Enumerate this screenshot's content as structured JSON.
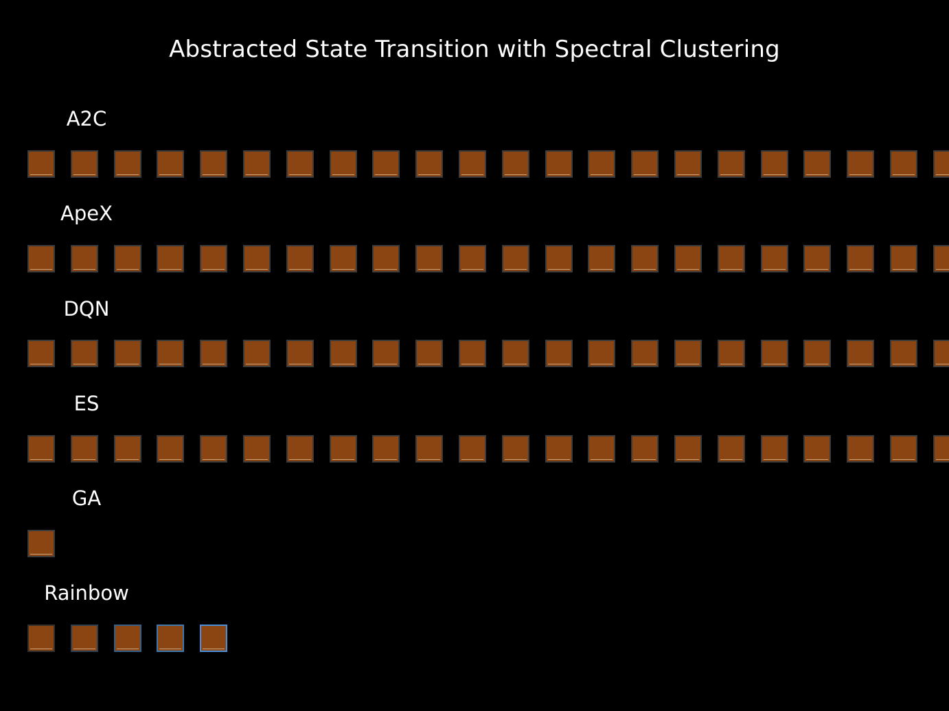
{
  "title": "Abstracted State Transition with Spectral Clustering",
  "colors": {
    "background": "#000000",
    "state": "#8B4513",
    "frame_default": "#3b3b3b",
    "frame_rainbow": [
      "#33302c",
      "#2c4051",
      "#345f86",
      "#3d79ad",
      "#4a90d9"
    ]
  },
  "rows": [
    {
      "label": "A2C",
      "tile_count": 22
    },
    {
      "label": "ApeX",
      "tile_count": 22
    },
    {
      "label": "DQN",
      "tile_count": 22
    },
    {
      "label": "ES",
      "tile_count": 22
    },
    {
      "label": "GA",
      "tile_count": 1
    },
    {
      "label": "Rainbow",
      "tile_count": 5
    }
  ]
}
